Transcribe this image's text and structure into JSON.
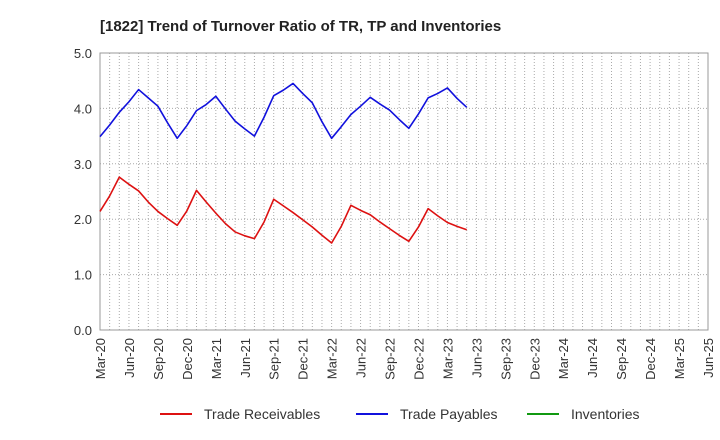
{
  "chart_data": {
    "type": "line",
    "title": "[1822]  Trend of Turnover Ratio of TR, TP and Inventories",
    "xlabel": "",
    "ylabel": "",
    "ylim": [
      0,
      5
    ],
    "yticks": [
      "0.0",
      "1.0",
      "2.0",
      "3.0",
      "4.0",
      "5.0"
    ],
    "x_tick_labels": [
      "Mar-20",
      "Jun-20",
      "Sep-20",
      "Dec-20",
      "Mar-21",
      "Jun-21",
      "Sep-21",
      "Dec-21",
      "Mar-22",
      "Jun-22",
      "Sep-22",
      "Dec-22",
      "Mar-23",
      "Jun-23",
      "Sep-23",
      "Dec-23",
      "Mar-24",
      "Jun-24",
      "Sep-24",
      "Dec-24",
      "Mar-25",
      "Jun-25"
    ],
    "grid": true,
    "legend_position": "bottom",
    "series": [
      {
        "name": "Trade Receivables",
        "color": "#dd1111",
        "values": [
          2.14,
          2.42,
          2.76,
          2.63,
          2.51,
          2.31,
          2.14,
          2.01,
          1.89,
          2.15,
          2.52,
          2.31,
          2.11,
          1.92,
          1.77,
          1.7,
          1.65,
          1.95,
          2.36,
          2.24,
          2.12,
          1.99,
          1.86,
          1.71,
          1.57,
          1.87,
          2.25,
          2.16,
          2.08,
          1.95,
          1.83,
          1.71,
          1.6,
          1.86,
          2.19,
          2.06,
          1.94,
          1.87,
          1.81
        ]
      },
      {
        "name": "Trade Payables",
        "color": "#1111dd",
        "values": [
          3.49,
          3.7,
          3.93,
          4.12,
          4.34,
          4.19,
          4.04,
          3.74,
          3.46,
          3.69,
          3.96,
          4.07,
          4.22,
          3.99,
          3.77,
          3.63,
          3.5,
          3.84,
          4.23,
          4.33,
          4.45,
          4.27,
          4.1,
          3.76,
          3.46,
          3.67,
          3.89,
          4.04,
          4.2,
          4.08,
          3.97,
          3.8,
          3.64,
          3.9,
          4.19,
          4.27,
          4.37,
          4.18,
          4.02
        ]
      },
      {
        "name": "Inventories",
        "color": "#119911",
        "values": []
      }
    ]
  }
}
